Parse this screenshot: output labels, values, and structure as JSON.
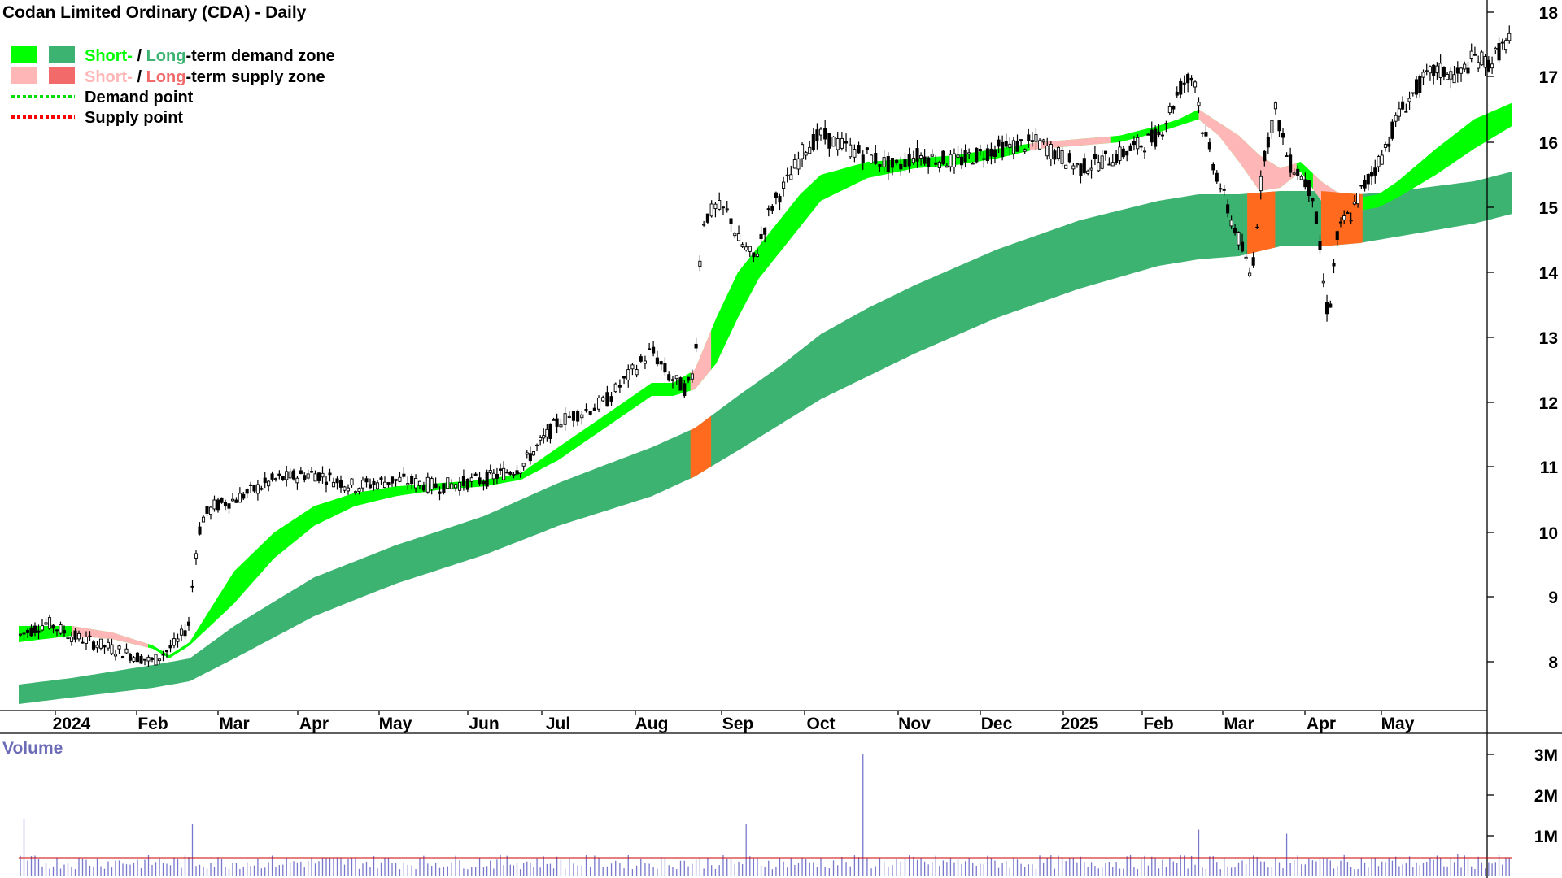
{
  "title": "Codan Limited Ordinary (CDA) - Daily",
  "colors": {
    "short_demand": "#00ff00",
    "long_demand": "#3cb371",
    "short_supply": "#ffb6b6",
    "long_supply": "#f26a6a",
    "overlap_supply": "#ff6a1e",
    "demand_point": "#00dd00",
    "supply_point": "#ff0000",
    "candle": "#000000",
    "volume_bar": "#7777cc",
    "volume_avg": "#cc0000",
    "volume_label": "#6b6bb8"
  },
  "legend": {
    "demand_zone": {
      "short": "Short-",
      "sep": " / ",
      "long": "Long",
      "rest": "-term demand zone"
    },
    "supply_zone": {
      "short": "Short-",
      "sep": " / ",
      "long": "Long",
      "rest": "-term supply zone"
    },
    "demand_point": "Demand point",
    "supply_point": "Supply point"
  },
  "chart_data": [
    {
      "type": "line",
      "subtype": "candlestick",
      "title": "Codan Limited Ordinary (CDA) - Daily",
      "xlabel": "",
      "ylabel": "",
      "ylim": [
        7.2,
        18.2
      ],
      "y_ticks": [
        8,
        9,
        10,
        11,
        12,
        13,
        14,
        15,
        16,
        17,
        18
      ],
      "x_ticks": [
        "2024",
        "Feb",
        "Mar",
        "Apr",
        "May",
        "Jun",
        "Jul",
        "Aug",
        "Sep",
        "Oct",
        "Nov",
        "Dec",
        "2025",
        "Feb",
        "Mar",
        "Apr",
        "May"
      ],
      "x_tick_month_index": [
        0,
        1,
        2,
        3,
        4,
        5,
        6,
        7,
        8,
        9,
        10,
        11,
        12,
        13,
        14,
        15,
        16
      ],
      "x_range_months": [
        -0.65,
        17.5
      ],
      "grid": false,
      "legend_position": "top-left",
      "series": [
        {
          "name": "Price",
          "x_month": [
            -0.65,
            -0.3,
            0.0,
            0.5,
            1.0,
            1.3,
            1.45,
            1.5,
            1.55,
            1.6,
            1.75,
            2.0,
            2.5,
            3.0,
            3.5,
            4.0,
            4.5,
            5.0,
            5.5,
            6.0,
            6.5,
            7.0,
            7.2,
            7.4,
            7.5,
            7.55,
            7.6,
            7.75,
            7.9,
            8.0,
            8.2,
            8.4,
            8.6,
            8.8,
            9.0,
            9.3,
            9.5,
            9.8,
            10.0,
            10.5,
            11.0,
            11.5,
            12.0,
            12.5,
            13.0,
            13.3,
            13.45,
            13.55,
            13.7,
            13.85,
            14.0,
            14.1,
            14.15,
            14.3,
            14.45,
            14.6,
            14.75,
            14.9,
            15.0,
            15.05,
            15.1,
            15.2,
            15.3,
            15.4,
            15.5,
            15.8,
            16.0,
            16.3,
            16.5,
            16.8,
            17.0,
            17.2,
            17.4,
            17.5
          ],
          "values": [
            8.4,
            8.6,
            8.4,
            8.2,
            8.0,
            8.3,
            8.6,
            9.4,
            9.9,
            10.2,
            10.4,
            10.5,
            10.8,
            10.9,
            10.7,
            10.8,
            10.7,
            10.8,
            11.0,
            11.7,
            12.0,
            12.8,
            12.4,
            12.2,
            12.5,
            14.0,
            14.8,
            15.0,
            14.9,
            14.5,
            14.2,
            15.0,
            15.4,
            15.9,
            16.1,
            15.9,
            15.8,
            15.6,
            15.8,
            15.7,
            15.9,
            16.0,
            15.6,
            15.8,
            16.1,
            16.9,
            17.0,
            16.2,
            15.6,
            15.0,
            14.5,
            14.1,
            13.9,
            15.8,
            16.5,
            15.7,
            15.5,
            15.2,
            14.2,
            13.6,
            13.3,
            14.5,
            14.8,
            14.9,
            15.2,
            15.8,
            16.4,
            16.9,
            17.1,
            17.0,
            17.3,
            17.2,
            17.5,
            17.6
          ]
        },
        {
          "name": "Short-term zone top",
          "x_month": [
            -0.65,
            0.0,
            0.5,
            1.0,
            1.2,
            1.45,
            2.0,
            2.5,
            3.0,
            3.5,
            4.0,
            4.5,
            5.0,
            5.5,
            6.0,
            6.5,
            7.0,
            7.25,
            7.5,
            7.75,
            8.0,
            8.25,
            8.5,
            8.75,
            9.0,
            9.5,
            10.0,
            10.5,
            11.0,
            11.5,
            12.0,
            12.5,
            13.0,
            13.25,
            13.5,
            13.75,
            14.0,
            14.25,
            14.5,
            14.75,
            15.0,
            15.25,
            15.5,
            15.75,
            16.0,
            16.5,
            17.0,
            17.5
          ],
          "values": [
            8.55,
            8.55,
            8.45,
            8.25,
            8.1,
            8.3,
            9.4,
            10.0,
            10.4,
            10.6,
            10.7,
            10.75,
            10.8,
            10.9,
            11.3,
            11.8,
            12.3,
            12.3,
            12.5,
            13.3,
            14.0,
            14.4,
            14.8,
            15.2,
            15.5,
            15.7,
            15.75,
            15.8,
            15.9,
            16.0,
            16.05,
            16.1,
            16.25,
            16.35,
            16.5,
            16.3,
            16.1,
            15.8,
            15.6,
            15.7,
            15.4,
            15.2,
            15.15,
            15.2,
            15.4,
            15.9,
            16.35,
            16.6
          ]
        },
        {
          "name": "Short-term zone bottom",
          "x_month": [
            -0.65,
            0.0,
            0.5,
            1.0,
            1.2,
            1.45,
            2.0,
            2.5,
            3.0,
            3.5,
            4.0,
            4.5,
            5.0,
            5.5,
            6.0,
            6.5,
            7.0,
            7.25,
            7.5,
            7.75,
            8.0,
            8.25,
            8.5,
            8.75,
            9.0,
            9.5,
            10.0,
            10.5,
            11.0,
            11.5,
            12.0,
            12.5,
            13.0,
            13.25,
            13.5,
            13.75,
            14.0,
            14.25,
            14.5,
            14.75,
            15.0,
            15.25,
            15.5,
            15.75,
            16.0,
            16.5,
            17.0,
            17.5
          ],
          "values": [
            8.3,
            8.4,
            8.35,
            8.2,
            8.05,
            8.25,
            8.9,
            9.6,
            10.1,
            10.4,
            10.55,
            10.65,
            10.7,
            10.8,
            11.1,
            11.6,
            12.1,
            12.1,
            12.2,
            12.6,
            13.3,
            13.9,
            14.3,
            14.7,
            15.1,
            15.45,
            15.6,
            15.65,
            15.75,
            15.9,
            15.95,
            16.0,
            16.15,
            16.25,
            16.35,
            16.1,
            15.7,
            15.25,
            15.3,
            15.55,
            15.1,
            14.9,
            14.95,
            15.0,
            15.15,
            15.5,
            15.9,
            16.25
          ]
        },
        {
          "name": "Long-term zone top",
          "x_month": [
            -0.65,
            0.0,
            1.0,
            1.45,
            2.0,
            3.0,
            4.0,
            5.0,
            6.0,
            7.0,
            7.5,
            8.0,
            8.5,
            9.0,
            9.5,
            10.0,
            11.0,
            12.0,
            13.0,
            13.5,
            14.0,
            14.5,
            15.0,
            15.5,
            16.0,
            17.0,
            17.5
          ],
          "values": [
            7.65,
            7.75,
            7.95,
            8.05,
            8.55,
            9.3,
            9.8,
            10.25,
            10.75,
            11.3,
            11.6,
            12.1,
            12.55,
            13.05,
            13.45,
            13.8,
            14.35,
            14.8,
            15.1,
            15.2,
            15.2,
            15.25,
            15.25,
            15.2,
            15.25,
            15.4,
            15.55
          ]
        },
        {
          "name": "Long-term zone bottom",
          "x_month": [
            -0.65,
            0.0,
            1.0,
            1.45,
            2.0,
            3.0,
            4.0,
            5.0,
            6.0,
            7.0,
            7.5,
            8.0,
            8.5,
            9.0,
            9.5,
            10.0,
            11.0,
            12.0,
            13.0,
            13.5,
            14.0,
            14.5,
            15.0,
            15.5,
            16.0,
            17.0,
            17.5
          ],
          "values": [
            7.35,
            7.45,
            7.6,
            7.7,
            8.05,
            8.7,
            9.2,
            9.65,
            10.1,
            10.55,
            10.85,
            11.25,
            11.65,
            12.05,
            12.4,
            12.75,
            13.3,
            13.75,
            14.1,
            14.2,
            14.25,
            14.4,
            14.4,
            14.45,
            14.55,
            14.75,
            14.9
          ]
        }
      ],
      "supply_periods_months": [
        [
          0.0,
          0.95
        ],
        [
          7.45,
          7.7
        ],
        [
          11.4,
          12.4
        ],
        [
          13.5,
          14.7
        ],
        [
          14.9,
          15.55
        ]
      ],
      "overlap_supply_periods_months": [
        [
          7.45,
          7.7
        ],
        [
          14.1,
          14.45
        ],
        [
          15.0,
          15.55
        ]
      ]
    },
    {
      "type": "bar",
      "title": "Volume",
      "xlabel": "",
      "ylabel": "",
      "ylim": [
        0,
        3.1
      ],
      "y_ticks": [
        "1M",
        "2M",
        "3M"
      ],
      "y_tick_values": [
        1,
        2,
        3
      ],
      "unit": "millions of shares",
      "grid": false,
      "x_month": [
        -0.6,
        1.5,
        8.1,
        9.45,
        13.5,
        14.6,
        16.8
      ],
      "spike_values": [
        1.4,
        1.3,
        1.3,
        3.0,
        1.15,
        1.05,
        0.55
      ],
      "baseline_volume": 0.35,
      "average_line_value": 0.45
    }
  ]
}
